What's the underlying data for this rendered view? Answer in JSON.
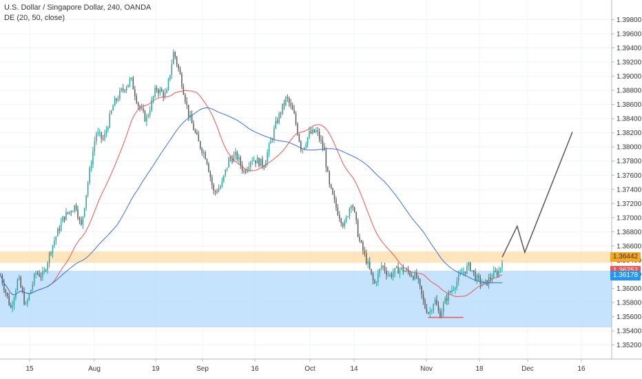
{
  "legend": {
    "instrument": "U.S. Dollar / Singapore Dollar, 240, OANDA",
    "indicator": "DE (20, 50, close)"
  },
  "price_tags": [
    {
      "label": "1.36442",
      "value": 1.36442,
      "color": "#f5a623",
      "text_color": "#333333"
    },
    {
      "label": "1.36252",
      "value": 1.36252,
      "color": "#ef5350",
      "text_color": "#ffffff"
    },
    {
      "label": "1.36178",
      "value": 1.36178,
      "color": "#2196f3",
      "text_color": "#ffffff"
    }
  ],
  "chart_data": {
    "type": "candlestick",
    "title": "",
    "x_tick_labels": [
      "15",
      "Aug",
      "19",
      "Sep",
      "16",
      "Oct",
      "14",
      "Nov",
      "18",
      "Dec",
      "16"
    ],
    "y_tick_labels": [
      "1.35200",
      "1.35400",
      "1.35600",
      "1.35800",
      "1.36000",
      "1.36200",
      "1.36400",
      "1.36600",
      "1.36800",
      "1.37000",
      "1.37200",
      "1.37400",
      "1.37600",
      "1.37800",
      "1.38000",
      "1.38200",
      "1.38400",
      "1.38600",
      "1.38800",
      "1.39000",
      "1.39200",
      "1.39400",
      "1.39600",
      "1.39800"
    ],
    "ylim": [
      1.3506,
      1.3996
    ],
    "price_path": [
      {
        "t": 0,
        "p": 1.3618
      },
      {
        "t": 0.04,
        "p": 1.3572
      },
      {
        "t": 0.07,
        "p": 1.3615
      },
      {
        "t": 0.1,
        "p": 1.3574
      },
      {
        "t": 0.14,
        "p": 1.3622
      },
      {
        "t": 0.17,
        "p": 1.3618
      },
      {
        "t": 0.2,
        "p": 1.3655
      },
      {
        "t": 0.25,
        "p": 1.37
      },
      {
        "t": 0.3,
        "p": 1.3718
      },
      {
        "t": 0.32,
        "p": 1.3685
      },
      {
        "t": 0.35,
        "p": 1.3755
      },
      {
        "t": 0.38,
        "p": 1.382
      },
      {
        "t": 0.41,
        "p": 1.381
      },
      {
        "t": 0.45,
        "p": 1.386
      },
      {
        "t": 0.48,
        "p": 1.3878
      },
      {
        "t": 0.52,
        "p": 1.3895
      },
      {
        "t": 0.55,
        "p": 1.3858
      },
      {
        "t": 0.58,
        "p": 1.3838
      },
      {
        "t": 0.62,
        "p": 1.3883
      },
      {
        "t": 0.66,
        "p": 1.3872
      },
      {
        "t": 0.69,
        "p": 1.3935
      },
      {
        "t": 0.72,
        "p": 1.3895
      },
      {
        "t": 0.75,
        "p": 1.3845
      },
      {
        "t": 0.79,
        "p": 1.3805
      },
      {
        "t": 0.82,
        "p": 1.3785
      },
      {
        "t": 0.85,
        "p": 1.3735
      },
      {
        "t": 0.88,
        "p": 1.3745
      },
      {
        "t": 0.91,
        "p": 1.3782
      },
      {
        "t": 0.94,
        "p": 1.3788
      },
      {
        "t": 0.97,
        "p": 1.3765
      },
      {
        "t": 1.0,
        "p": 1.3784
      },
      {
        "t": 1.05,
        "p": 1.3775
      },
      {
        "t": 1.1,
        "p": 1.3835
      },
      {
        "t": 1.14,
        "p": 1.387
      },
      {
        "t": 1.17,
        "p": 1.3845
      },
      {
        "t": 1.2,
        "p": 1.3795
      },
      {
        "t": 1.23,
        "p": 1.3818
      },
      {
        "t": 1.26,
        "p": 1.3822
      },
      {
        "t": 1.29,
        "p": 1.3795
      },
      {
        "t": 1.31,
        "p": 1.3745
      },
      {
        "t": 1.34,
        "p": 1.3712
      },
      {
        "t": 1.37,
        "p": 1.3688
      },
      {
        "t": 1.4,
        "p": 1.3725
      },
      {
        "t": 1.43,
        "p": 1.3668
      },
      {
        "t": 1.46,
        "p": 1.3638
      },
      {
        "t": 1.49,
        "p": 1.3605
      },
      {
        "t": 1.52,
        "p": 1.3633
      },
      {
        "t": 1.55,
        "p": 1.3618
      },
      {
        "t": 1.59,
        "p": 1.3628
      },
      {
        "t": 1.63,
        "p": 1.3622
      },
      {
        "t": 1.66,
        "p": 1.3615
      },
      {
        "t": 1.69,
        "p": 1.3575
      },
      {
        "t": 1.71,
        "p": 1.3565
      },
      {
        "t": 1.73,
        "p": 1.3585
      },
      {
        "t": 1.75,
        "p": 1.3562
      },
      {
        "t": 1.78,
        "p": 1.3588
      },
      {
        "t": 1.81,
        "p": 1.3605
      },
      {
        "t": 1.84,
        "p": 1.3622
      },
      {
        "t": 1.87,
        "p": 1.3632
      },
      {
        "t": 1.9,
        "p": 1.3612
      },
      {
        "t": 1.93,
        "p": 1.3605
      },
      {
        "t": 1.96,
        "p": 1.3618
      },
      {
        "t": 1.99,
        "p": 1.3625
      },
      {
        "t": 2.0,
        "p": 1.3642
      }
    ],
    "moving_averages": [
      {
        "period": 20,
        "color": "#ef5350"
      },
      {
        "period": 50,
        "color": "#3a6fd8"
      }
    ],
    "zones": [
      {
        "name": "",
        "from": 1.3545,
        "to": 1.3625,
        "color": "#bbdefb"
      },
      {
        "name": "",
        "from": 1.3636,
        "to": 1.3652,
        "color": "#ffe0b2"
      }
    ],
    "support_line": {
      "from_t": 1.705,
      "to_t": 1.845,
      "value": 1.3559,
      "color": "#ef5350"
    },
    "projection_path": [
      {
        "t": 2.0,
        "p": 1.3644
      },
      {
        "t": 2.06,
        "p": 1.3688
      },
      {
        "t": 2.09,
        "p": 1.3651
      },
      {
        "t": 2.28,
        "p": 1.3821
      }
    ],
    "grid": true,
    "legend_position": "top-left"
  }
}
